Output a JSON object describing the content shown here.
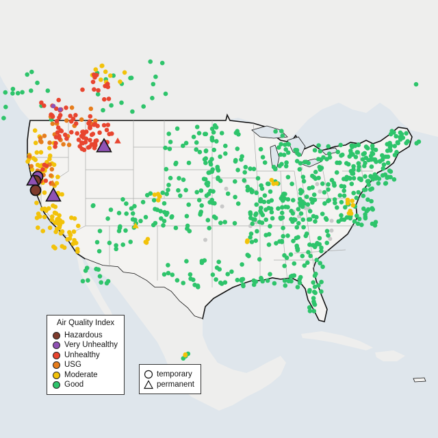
{
  "map": {
    "region": "Contiguous United States",
    "land_color": "#f1f0ef",
    "water_color": "#dfe6ec",
    "border_color": "#111111",
    "state_line_color": "#aaaaaa"
  },
  "legend_aqi": {
    "title": "Air Quality Index",
    "items": [
      {
        "label": "Hazardous",
        "color": "#7e3b2c"
      },
      {
        "label": "Very Unhealthy",
        "color": "#8f52b3"
      },
      {
        "label": "Unhealthy",
        "color": "#e8452f"
      },
      {
        "label": "USG",
        "color": "#e67d1c"
      },
      {
        "label": "Moderate",
        "color": "#f2c20a"
      },
      {
        "label": "Good",
        "color": "#2ec46b"
      }
    ]
  },
  "legend_type": {
    "items": [
      {
        "label": "temporary",
        "symbol": "circle-icon"
      },
      {
        "label": "permanent",
        "symbol": "triangle-icon"
      }
    ]
  }
}
